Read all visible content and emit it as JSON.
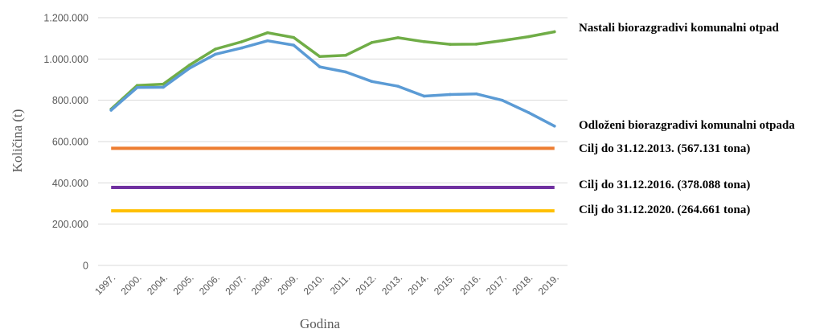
{
  "chart_data": {
    "type": "line",
    "x": [
      "1997.",
      "2000.",
      "2004.",
      "2005.",
      "2006.",
      "2007.",
      "2008.",
      "2009.",
      "2010.",
      "2011.",
      "2012.",
      "2013.",
      "2014.",
      "2015.",
      "2016.",
      "2017.",
      "2018.",
      "2019."
    ],
    "xlabel": "Godina",
    "ylabel": "Količina (t)",
    "ylim": [
      0,
      1200000
    ],
    "yticks": [
      {
        "value": 0,
        "label": "0"
      },
      {
        "value": 200000,
        "label": "200.000"
      },
      {
        "value": 400000,
        "label": "400.000"
      },
      {
        "value": 600000,
        "label": "600.000"
      },
      {
        "value": 800000,
        "label": "800.000"
      },
      {
        "value": 1000000,
        "label": "1.000.000"
      },
      {
        "value": 1200000,
        "label": "1.200.000"
      }
    ],
    "grid": true,
    "series": [
      {
        "name": "Nastali biorazgradivi komunalni otpad",
        "color": "#70ad47",
        "values": [
          757000,
          872000,
          878000,
          970000,
          1048000,
          1083000,
          1127000,
          1104000,
          1012000,
          1018000,
          1080000,
          1103000,
          1084000,
          1071000,
          1072000,
          1089000,
          1108000,
          1132000
        ]
      },
      {
        "name": "Odloženi biorazgradivi komunalni otpada",
        "color": "#5b9bd5",
        "values": [
          752000,
          862000,
          863000,
          955000,
          1023000,
          1053000,
          1088000,
          1067000,
          962000,
          937000,
          891000,
          868000,
          820000,
          828000,
          831000,
          800000,
          741000,
          675000
        ]
      }
    ],
    "targets": [
      {
        "label": "Cilj do 31.12.2013. (567.131 tona)",
        "value": 567131,
        "color": "#ed7d31"
      },
      {
        "label": "Cilj do 31.12.2016. (378.088 tona)",
        "value": 378088,
        "color": "#7030a0"
      },
      {
        "label": "Cilj do 31.12.2020. (264.661 tona)",
        "value": 264661,
        "color": "#ffc000"
      }
    ]
  }
}
